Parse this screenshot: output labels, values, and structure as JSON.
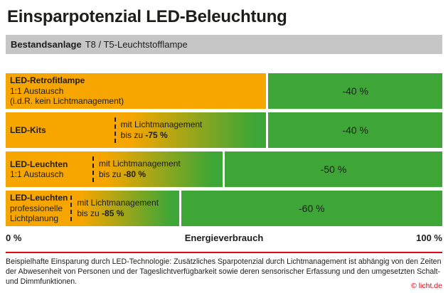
{
  "title": "Einsparpotenzial LED-Beleuchtung",
  "legacy_bar": {
    "bold": "Bestandsanlage",
    "regular": "T8 / T5-Leuchtstofflampe"
  },
  "colors": {
    "orange": "#F7A600",
    "green": "#3EA636",
    "gray": "#C6C6C6",
    "red": "#E30613",
    "text": "#1D1D1B"
  },
  "chart_data": {
    "type": "bar",
    "title": "Einsparpotenzial LED-Beleuchtung",
    "xlabel": "Energieverbrauch",
    "x_axis": {
      "min_label": "0 %",
      "max_label": "100 %",
      "range_pct": [
        0,
        100
      ]
    },
    "rows": [
      {
        "label_lines": [
          "LED-Retrofitlampe",
          "1:1 Austausch",
          "(i.d.R. kein Lichtmanagement)"
        ],
        "consumption_pct": 60,
        "saving_pct": 40,
        "saving_label": "-40 %",
        "management": null
      },
      {
        "label_lines": [
          "LED-Kits"
        ],
        "consumption_pct": 60,
        "saving_pct": 40,
        "saving_label": "-40 %",
        "management": {
          "line1": "mit Lichtmanagement",
          "line2_prefix": "bis zu ",
          "line2_value": "-75 %",
          "max_saving_pct": 75,
          "min_consumption_pct": 25
        }
      },
      {
        "label_lines": [
          "LED-Leuchten",
          "1:1 Austausch"
        ],
        "consumption_pct": 50,
        "saving_pct": 50,
        "saving_label": "-50 %",
        "management": {
          "line1": "mit Lichtmanagement",
          "line2_prefix": "bis zu ",
          "line2_value": "-80 %",
          "max_saving_pct": 80,
          "min_consumption_pct": 20
        }
      },
      {
        "label_lines": [
          "LED-Leuchten",
          "professionelle",
          "Lichtplanung"
        ],
        "consumption_pct": 40,
        "saving_pct": 60,
        "saving_label": "-60 %",
        "management": {
          "line1": "mit Lichtmanagement",
          "line2_prefix": "bis zu ",
          "line2_value": "-85 %",
          "max_saving_pct": 85,
          "min_consumption_pct": 15
        }
      }
    ]
  },
  "footnote": "Beispielhafte Einsparung durch LED-Technologie: Zusätzliches Sparpotenzial durch Lichtmanagement ist abhängig von den Zeiten der Abwesenheit von Personen und der Tageslichtverfügbarkeit sowie deren sensorischer Erfassung und den umgesetzten Schalt- und Dimmfunktionen.",
  "credit": "© licht.de"
}
